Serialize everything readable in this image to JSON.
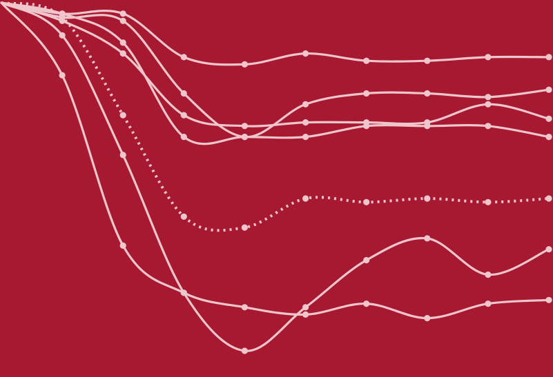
{
  "colors": {
    "background": "#a71931",
    "line": "#f0c6cd"
  },
  "chart_data": {
    "type": "line",
    "title": "",
    "xlabel": "",
    "ylabel": "",
    "x": [
      0,
      1,
      2,
      3,
      4,
      5,
      6,
      7,
      8,
      9
    ],
    "xlim": [
      0,
      9
    ],
    "ylim": [
      0,
      100
    ],
    "grid": false,
    "legend": "none",
    "series": [
      {
        "style": "solid",
        "values": [
          100,
          97,
          97,
          85,
          83,
          86,
          84,
          84,
          85,
          85
        ]
      },
      {
        "style": "solid",
        "values": [
          100,
          96,
          95,
          75,
          63,
          72,
          75,
          75,
          74,
          76
        ]
      },
      {
        "style": "solid",
        "values": [
          100,
          95,
          86,
          69,
          66,
          67,
          67,
          67,
          72,
          68
        ]
      },
      {
        "style": "solid",
        "values": [
          100,
          97,
          89,
          63,
          63,
          63,
          66,
          66,
          66,
          63
        ]
      },
      {
        "style": "dotted",
        "values": [
          100,
          96,
          69,
          41,
          38,
          46,
          45,
          46,
          45,
          46
        ]
      },
      {
        "style": "solid",
        "values": [
          100,
          91,
          58,
          20,
          4,
          16,
          29,
          35,
          25,
          32
        ]
      },
      {
        "style": "solid",
        "values": [
          100,
          80,
          33,
          20,
          16,
          14,
          17,
          13,
          17,
          18
        ]
      }
    ]
  }
}
